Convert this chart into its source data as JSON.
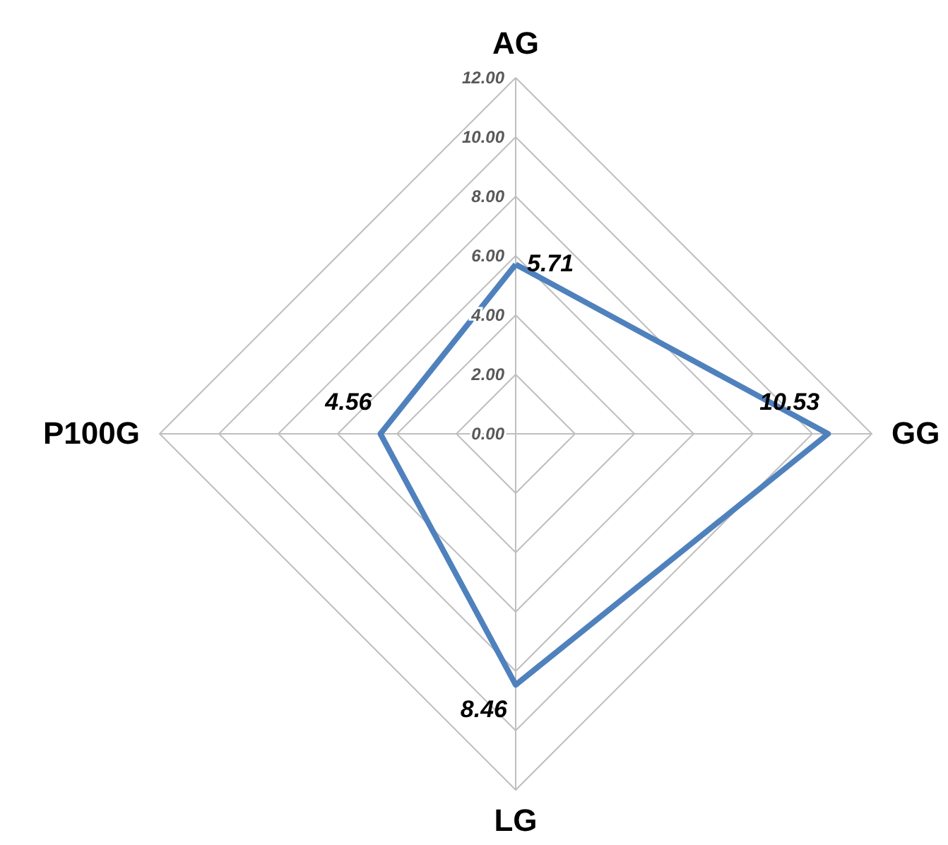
{
  "chart_data": {
    "type": "radar",
    "categories": [
      "AG",
      "GG",
      "LG",
      "P100G"
    ],
    "series": [
      {
        "color": "#4f81bd",
        "values": [
          5.71,
          10.53,
          8.46,
          4.56
        ]
      }
    ],
    "ylim": [
      0,
      12
    ],
    "yticks": [
      {
        "value": 0,
        "label": "0.00"
      },
      {
        "value": 2,
        "label": "2.00"
      },
      {
        "value": 4,
        "label": "4.00"
      },
      {
        "value": 6,
        "label": "6.00"
      },
      {
        "value": 8,
        "label": "8.00"
      },
      {
        "value": 10,
        "label": "10.00"
      },
      {
        "value": 12,
        "label": "12.00"
      }
    ],
    "grid": true,
    "data_labels": true,
    "marker": "none",
    "line_style": "solid"
  }
}
